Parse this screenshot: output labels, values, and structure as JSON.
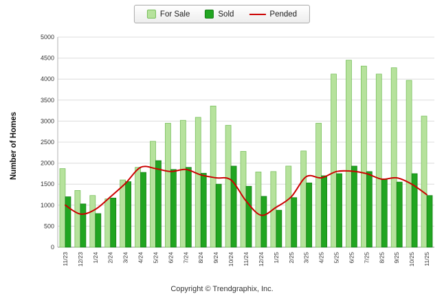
{
  "legend": {
    "items": [
      "For Sale",
      "Sold",
      "Pended"
    ]
  },
  "footer": {
    "copyright": "Copyright © Trendgraphix, Inc."
  },
  "chart_data": {
    "type": "bar",
    "title": "",
    "xlabel": "",
    "ylabel": "Number of Homes",
    "ylim": [
      0,
      5000
    ],
    "ytick_step": 500,
    "grid": true,
    "legend_position": "top-center",
    "categories": [
      "11/23",
      "12/23",
      "1/24",
      "2/24",
      "3/24",
      "4/24",
      "5/24",
      "6/24",
      "7/24",
      "8/24",
      "9/24",
      "10/24",
      "11/24",
      "12/24",
      "1/25",
      "2/25",
      "3/25",
      "4/25",
      "5/25",
      "6/25",
      "7/25",
      "8/25",
      "9/25",
      "10/25",
      "11/25"
    ],
    "series": [
      {
        "name": "For Sale",
        "type": "bar",
        "color": "#b6e29c",
        "border": "#74bd58",
        "values": [
          1870,
          1350,
          1230,
          1150,
          1600,
          1900,
          2520,
          2950,
          3020,
          3090,
          3360,
          2900,
          2280,
          1790,
          1800,
          1930,
          2290,
          2950,
          4120,
          4450,
          4310,
          4120,
          4270,
          3970,
          3120
        ]
      },
      {
        "name": "Sold",
        "type": "bar",
        "color": "#21a521",
        "border": "#147d14",
        "values": [
          1200,
          1030,
          800,
          1170,
          1560,
          1780,
          2060,
          1850,
          1900,
          1760,
          1500,
          1930,
          1450,
          1210,
          880,
          1180,
          1530,
          1700,
          1750,
          1930,
          1800,
          1620,
          1550,
          1750,
          1230
        ]
      },
      {
        "name": "Pended",
        "type": "line",
        "color": "#cc0000",
        "values": [
          1000,
          790,
          900,
          1200,
          1520,
          1900,
          1870,
          1800,
          1850,
          1720,
          1650,
          1600,
          1100,
          760,
          950,
          1200,
          1680,
          1650,
          1800,
          1810,
          1750,
          1620,
          1650,
          1500,
          1250
        ]
      }
    ]
  }
}
